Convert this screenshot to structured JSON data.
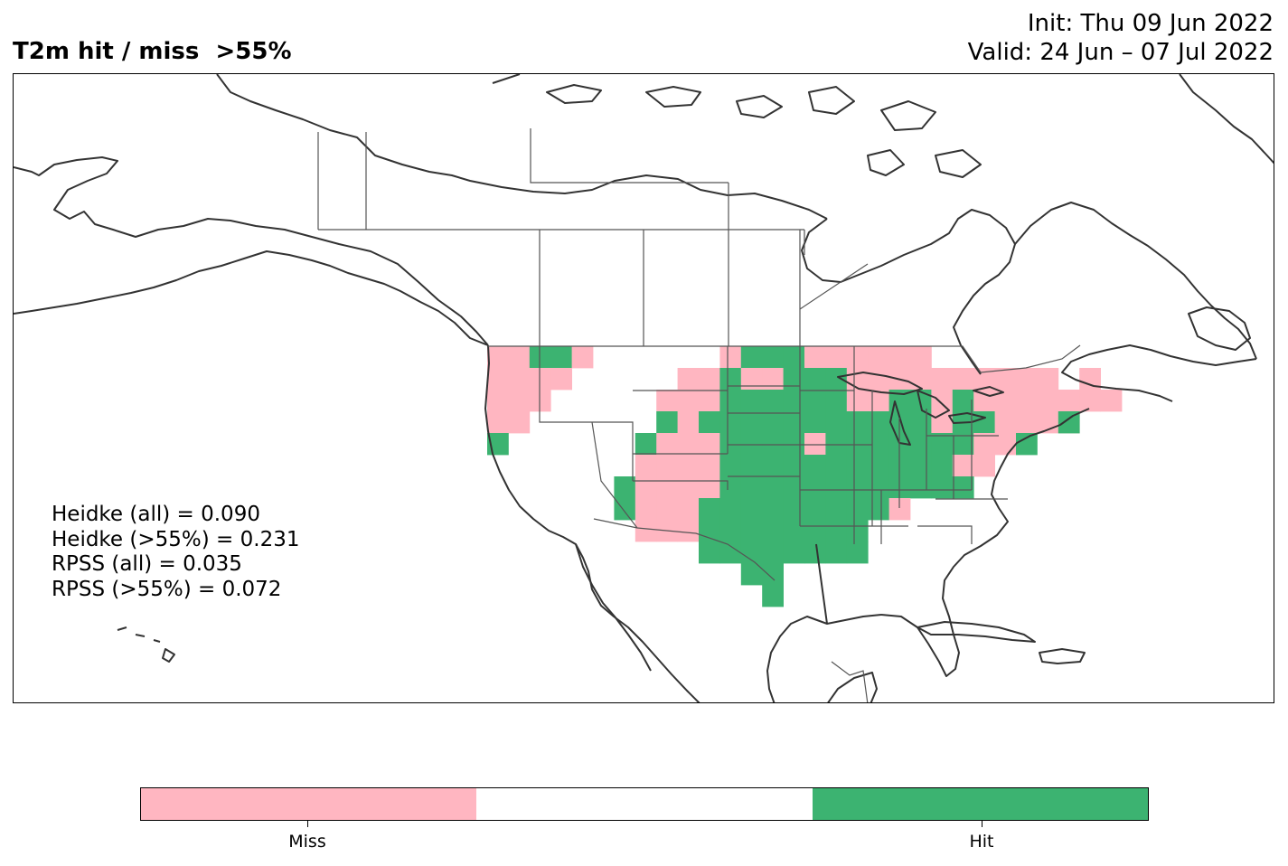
{
  "title": {
    "left": "T2m hit / miss  >55%",
    "init": "Init: Thu 09 Jun 2022",
    "valid": "Valid: 24 Jun – 07 Jul 2022"
  },
  "scores": [
    "Heidke (all) = 0.090",
    "Heidke (>55%) = 0.231",
    "RPSS (all) = 0.035",
    "RPSS (>55%) = 0.072"
  ],
  "legend": {
    "categories": [
      {
        "label": "Miss",
        "color": "#ffb6c1"
      },
      {
        "label": "",
        "color": "#ffffff"
      },
      {
        "label": "Hit",
        "color": "#3cb371"
      }
    ]
  },
  "colors": {
    "miss": "#ffb6c1",
    "hit": "#3cb371",
    "no_signal": "#ffffff",
    "coastline": "#333333",
    "border": "#555555"
  }
}
